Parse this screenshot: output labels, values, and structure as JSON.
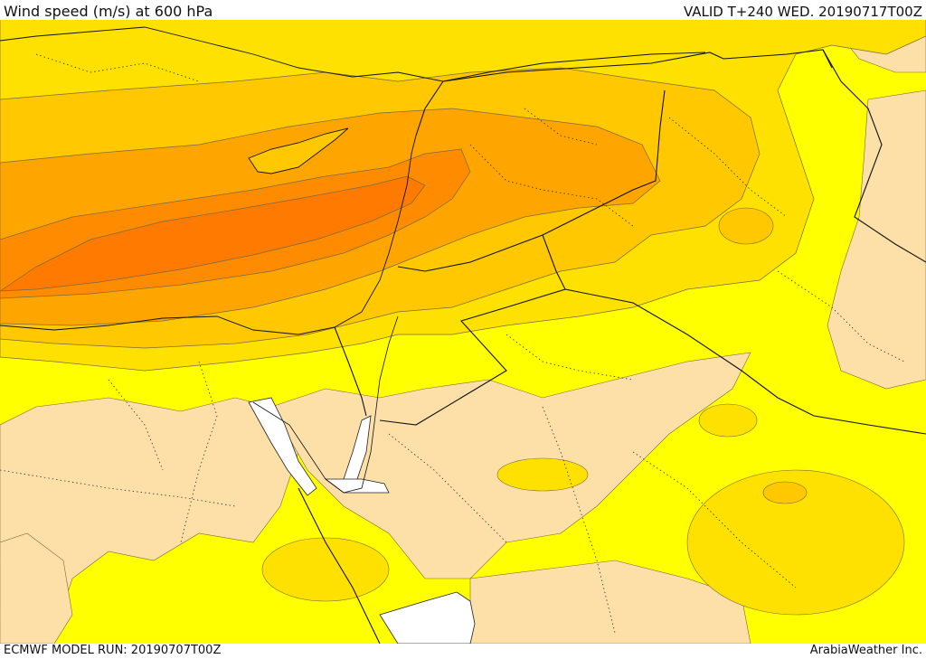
{
  "header": {
    "title": "Wind speed (m/s) at 600 hPa",
    "valid": "VALID T+240 WED. 20190717T00Z"
  },
  "footer": {
    "model_run": "ECMWF MODEL RUN: 20190707T00Z",
    "credit": "ArabiaWeather Inc."
  },
  "map": {
    "field": "wind speed",
    "level": "600 hPa",
    "shading_colors": {
      "low": "#fde0a8",
      "yellow": "#ffff00",
      "gold": "#ffe100",
      "amber": "#ffc800",
      "orange_light": "#ffa500",
      "orange": "#ff8c00",
      "orange_dark": "#ff7a00",
      "sea_white": "#ffffff"
    }
  }
}
